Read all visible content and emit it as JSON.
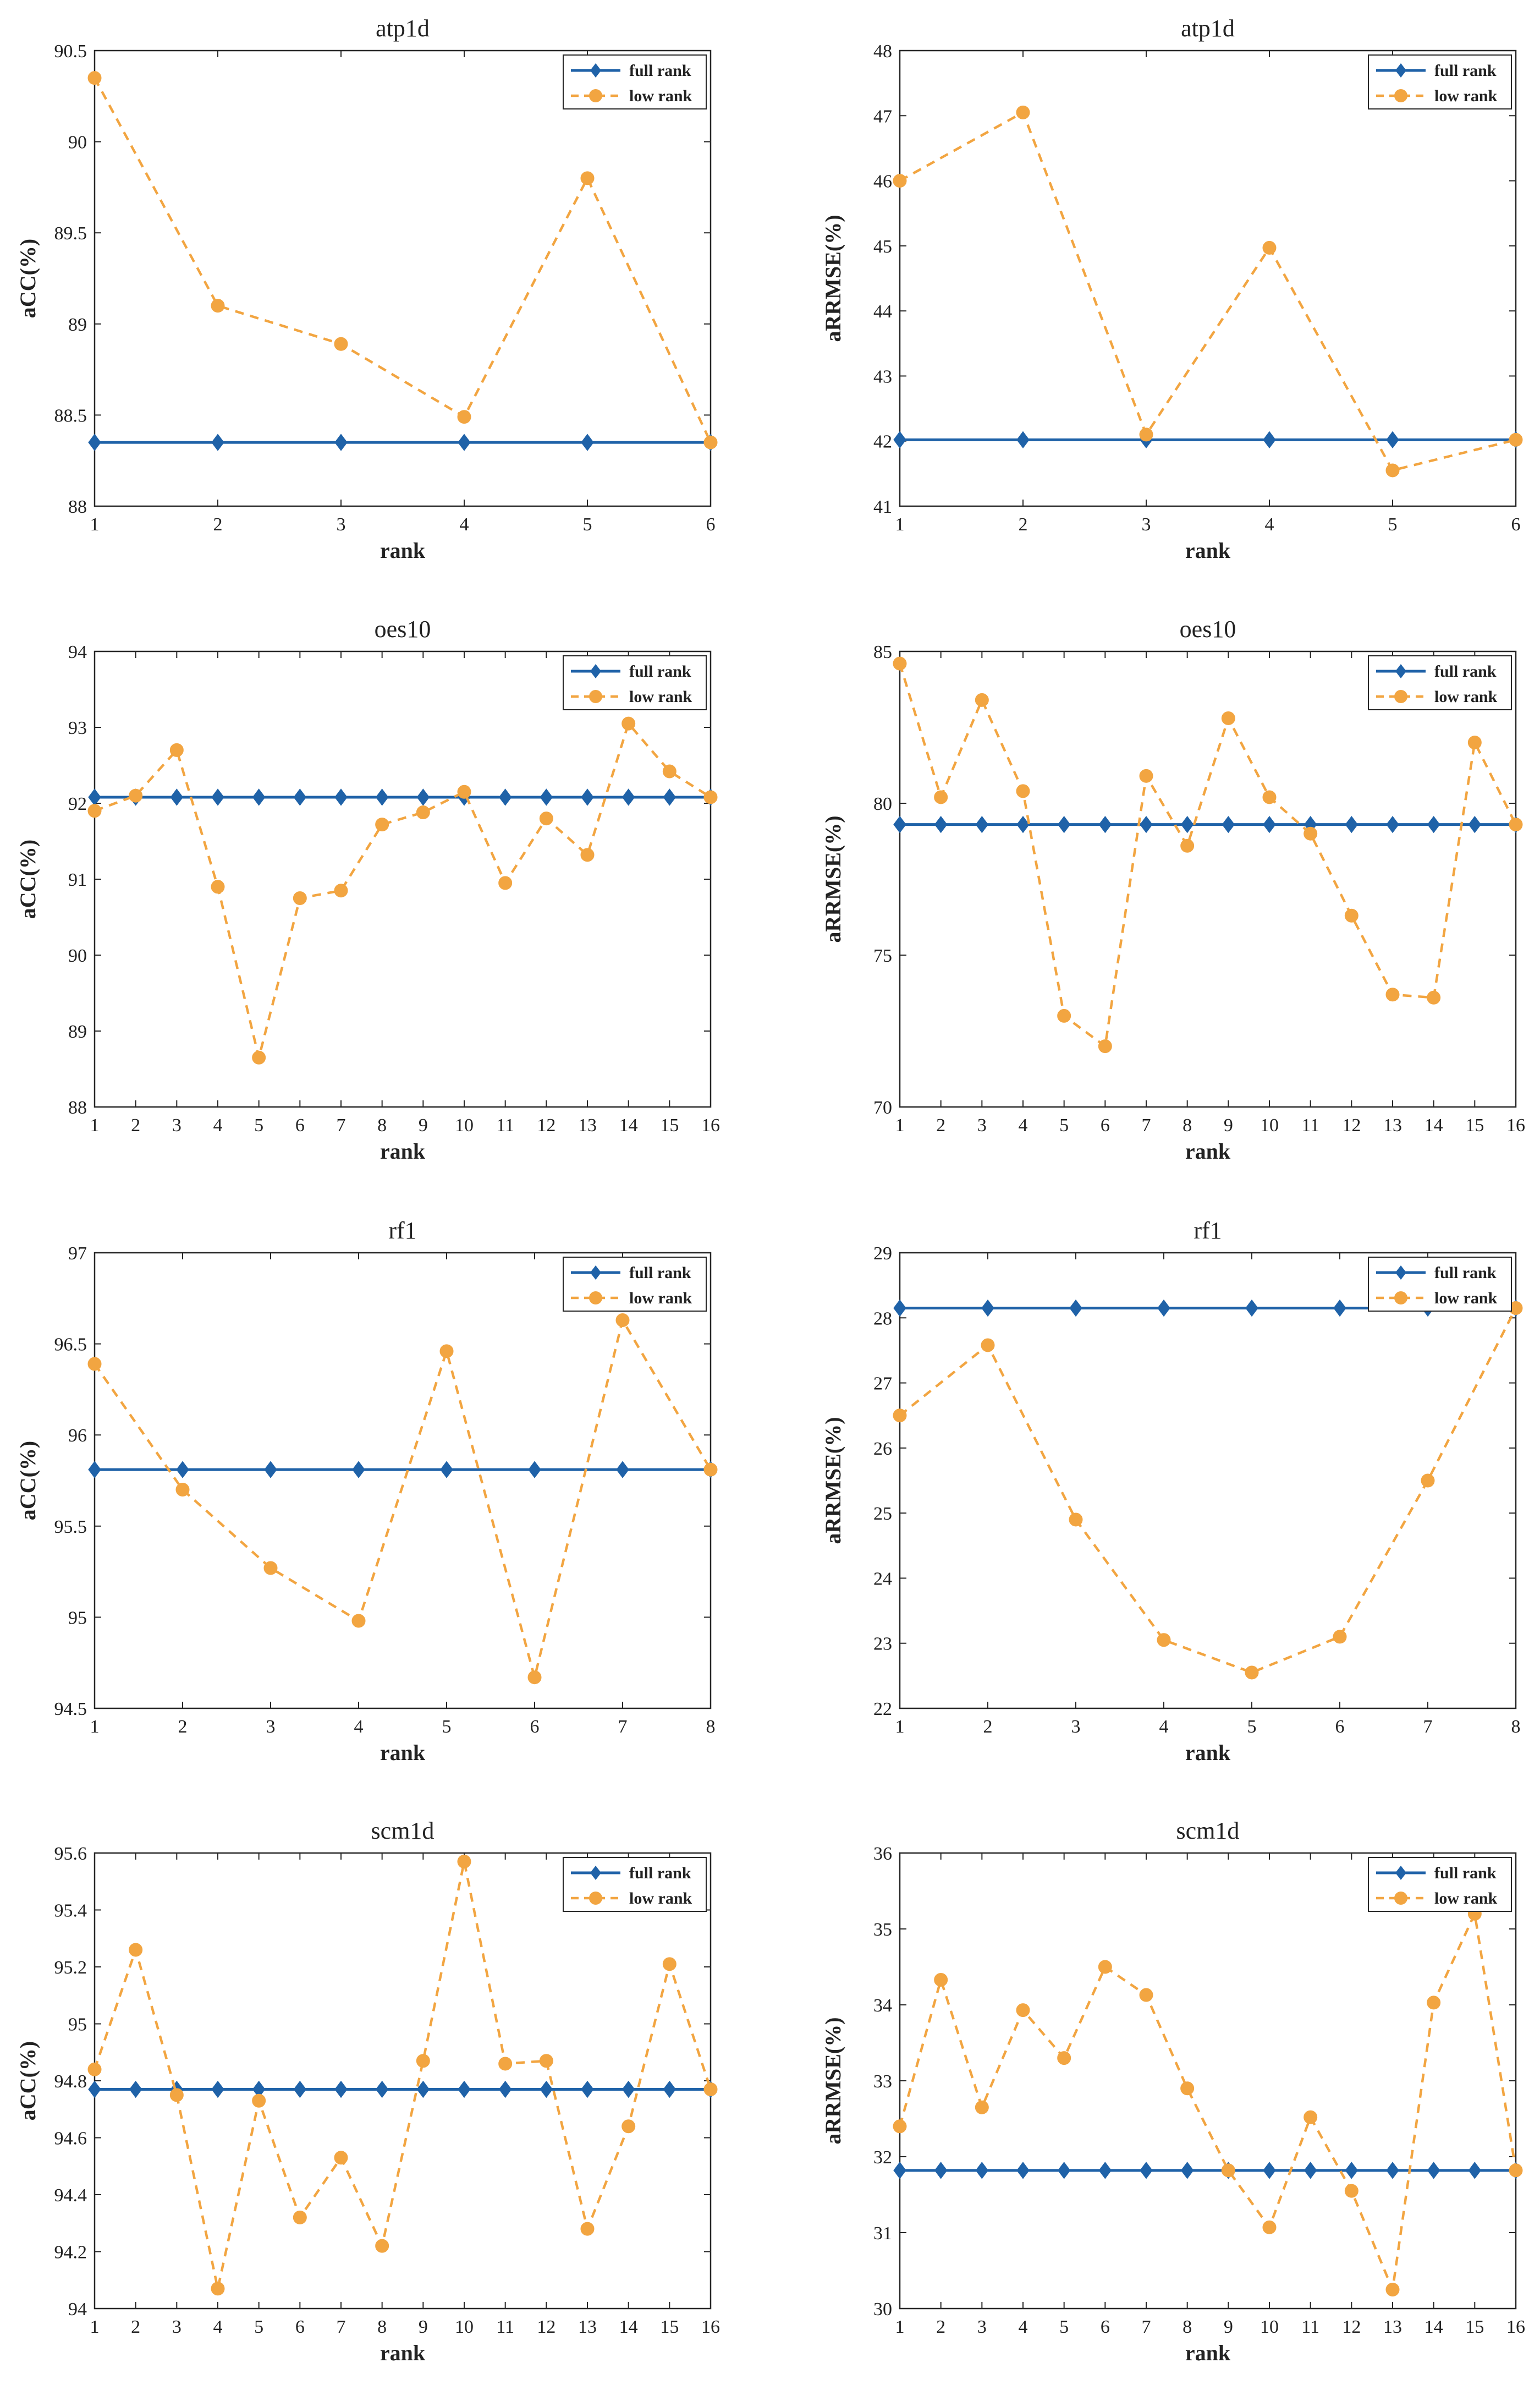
{
  "legend": {
    "full_rank": "full rank",
    "low_rank": "low rank"
  },
  "colors": {
    "full_rank": "#1f62a8",
    "low_rank": "#f2a541",
    "axis": "#262626"
  },
  "chart_data": [
    {
      "type": "line",
      "title": "atp1d",
      "xlabel": "rank",
      "ylabel": "aCC(%)",
      "x": [
        1,
        2,
        3,
        4,
        5,
        6
      ],
      "ylim": [
        88,
        90.5
      ],
      "yticks": [
        "88",
        "88.5",
        "89",
        "89.5",
        "90",
        "90.5"
      ],
      "series": [
        {
          "name": "full rank",
          "values": [
            88.35,
            88.35,
            88.35,
            88.35,
            88.35,
            88.35
          ]
        },
        {
          "name": "low rank",
          "values": [
            90.35,
            89.1,
            88.89,
            88.49,
            89.8,
            88.35
          ]
        }
      ]
    },
    {
      "type": "line",
      "title": "atp1d",
      "xlabel": "rank",
      "ylabel": "aRRMSE(%)",
      "x": [
        1,
        2,
        3,
        4,
        5,
        6
      ],
      "ylim": [
        41,
        48
      ],
      "yticks": [
        "41",
        "42",
        "43",
        "44",
        "45",
        "46",
        "47",
        "48"
      ],
      "series": [
        {
          "name": "full rank",
          "values": [
            42.02,
            42.02,
            42.02,
            42.02,
            42.02,
            42.02
          ]
        },
        {
          "name": "low rank",
          "values": [
            46.0,
            47.05,
            42.1,
            44.97,
            41.55,
            42.02
          ]
        }
      ]
    },
    {
      "type": "line",
      "title": "oes10",
      "xlabel": "rank",
      "ylabel": "aCC(%)",
      "x": [
        1,
        2,
        3,
        4,
        5,
        6,
        7,
        8,
        9,
        10,
        11,
        12,
        13,
        14,
        15,
        16
      ],
      "ylim": [
        88,
        94
      ],
      "yticks": [
        "88",
        "89",
        "90",
        "91",
        "92",
        "93",
        "94"
      ],
      "series": [
        {
          "name": "full rank",
          "values": [
            92.08,
            92.08,
            92.08,
            92.08,
            92.08,
            92.08,
            92.08,
            92.08,
            92.08,
            92.08,
            92.08,
            92.08,
            92.08,
            92.08,
            92.08,
            92.08
          ]
        },
        {
          "name": "low rank",
          "values": [
            91.9,
            92.1,
            92.7,
            90.9,
            88.65,
            90.75,
            90.85,
            91.72,
            91.88,
            92.15,
            90.95,
            91.8,
            91.32,
            93.05,
            92.42,
            92.08
          ]
        }
      ]
    },
    {
      "type": "line",
      "title": "oes10",
      "xlabel": "rank",
      "ylabel": "aRRMSE(%)",
      "x": [
        1,
        2,
        3,
        4,
        5,
        6,
        7,
        8,
        9,
        10,
        11,
        12,
        13,
        14,
        15,
        16
      ],
      "ylim": [
        70,
        85
      ],
      "yticks": [
        "70",
        "75",
        "80",
        "85"
      ],
      "series": [
        {
          "name": "full rank",
          "values": [
            79.3,
            79.3,
            79.3,
            79.3,
            79.3,
            79.3,
            79.3,
            79.3,
            79.3,
            79.3,
            79.3,
            79.3,
            79.3,
            79.3,
            79.3,
            79.3
          ]
        },
        {
          "name": "low rank",
          "values": [
            84.6,
            80.2,
            83.4,
            80.4,
            73.0,
            72.0,
            80.9,
            78.6,
            82.8,
            80.2,
            79.0,
            76.3,
            73.7,
            73.6,
            82.0,
            79.3
          ]
        }
      ]
    },
    {
      "type": "line",
      "title": "rf1",
      "xlabel": "rank",
      "ylabel": "aCC(%)",
      "x": [
        1,
        2,
        3,
        4,
        5,
        6,
        7,
        8
      ],
      "ylim": [
        94.5,
        97
      ],
      "yticks": [
        "94.5",
        "95",
        "95.5",
        "96",
        "96.5",
        "97"
      ],
      "series": [
        {
          "name": "full rank",
          "values": [
            95.81,
            95.81,
            95.81,
            95.81,
            95.81,
            95.81,
            95.81,
            95.81
          ]
        },
        {
          "name": "low rank",
          "values": [
            96.39,
            95.7,
            95.27,
            94.98,
            96.46,
            94.67,
            96.63,
            95.81
          ]
        }
      ]
    },
    {
      "type": "line",
      "title": "rf1",
      "xlabel": "rank",
      "ylabel": "aRRMSE(%)",
      "x": [
        1,
        2,
        3,
        4,
        5,
        6,
        7,
        8
      ],
      "ylim": [
        22,
        29
      ],
      "yticks": [
        "22",
        "23",
        "24",
        "25",
        "26",
        "27",
        "28",
        "29"
      ],
      "series": [
        {
          "name": "full rank",
          "values": [
            28.15,
            28.15,
            28.15,
            28.15,
            28.15,
            28.15,
            28.15,
            28.15
          ]
        },
        {
          "name": "low rank",
          "values": [
            26.5,
            27.58,
            24.9,
            23.05,
            22.55,
            23.1,
            25.5,
            28.15
          ]
        }
      ]
    },
    {
      "type": "line",
      "title": "scm1d",
      "xlabel": "rank",
      "ylabel": "aCC(%)",
      "x": [
        1,
        2,
        3,
        4,
        5,
        6,
        7,
        8,
        9,
        10,
        11,
        12,
        13,
        14,
        15,
        16
      ],
      "ylim": [
        94,
        95.6
      ],
      "yticks": [
        "94",
        "94.2",
        "94.4",
        "94.6",
        "94.8",
        "95",
        "95.2",
        "95.4",
        "95.6"
      ],
      "series": [
        {
          "name": "full rank",
          "values": [
            94.77,
            94.77,
            94.77,
            94.77,
            94.77,
            94.77,
            94.77,
            94.77,
            94.77,
            94.77,
            94.77,
            94.77,
            94.77,
            94.77,
            94.77,
            94.77
          ]
        },
        {
          "name": "low rank",
          "values": [
            94.84,
            95.26,
            94.75,
            94.07,
            94.73,
            94.32,
            94.53,
            94.22,
            94.87,
            95.57,
            94.86,
            94.87,
            94.28,
            94.64,
            95.21,
            94.77
          ]
        }
      ]
    },
    {
      "type": "line",
      "title": "scm1d",
      "xlabel": "rank",
      "ylabel": "aRRMSE(%)",
      "x": [
        1,
        2,
        3,
        4,
        5,
        6,
        7,
        8,
        9,
        10,
        11,
        12,
        13,
        14,
        15,
        16
      ],
      "ylim": [
        30,
        36
      ],
      "yticks": [
        "30",
        "31",
        "32",
        "33",
        "34",
        "35",
        "36"
      ],
      "series": [
        {
          "name": "full rank",
          "values": [
            31.82,
            31.82,
            31.82,
            31.82,
            31.82,
            31.82,
            31.82,
            31.82,
            31.82,
            31.82,
            31.82,
            31.82,
            31.82,
            31.82,
            31.82,
            31.82
          ]
        },
        {
          "name": "low rank",
          "values": [
            32.4,
            34.33,
            32.65,
            33.93,
            33.3,
            34.5,
            34.13,
            32.9,
            31.82,
            31.07,
            32.52,
            31.55,
            30.25,
            34.03,
            35.2,
            31.82
          ]
        }
      ]
    }
  ]
}
